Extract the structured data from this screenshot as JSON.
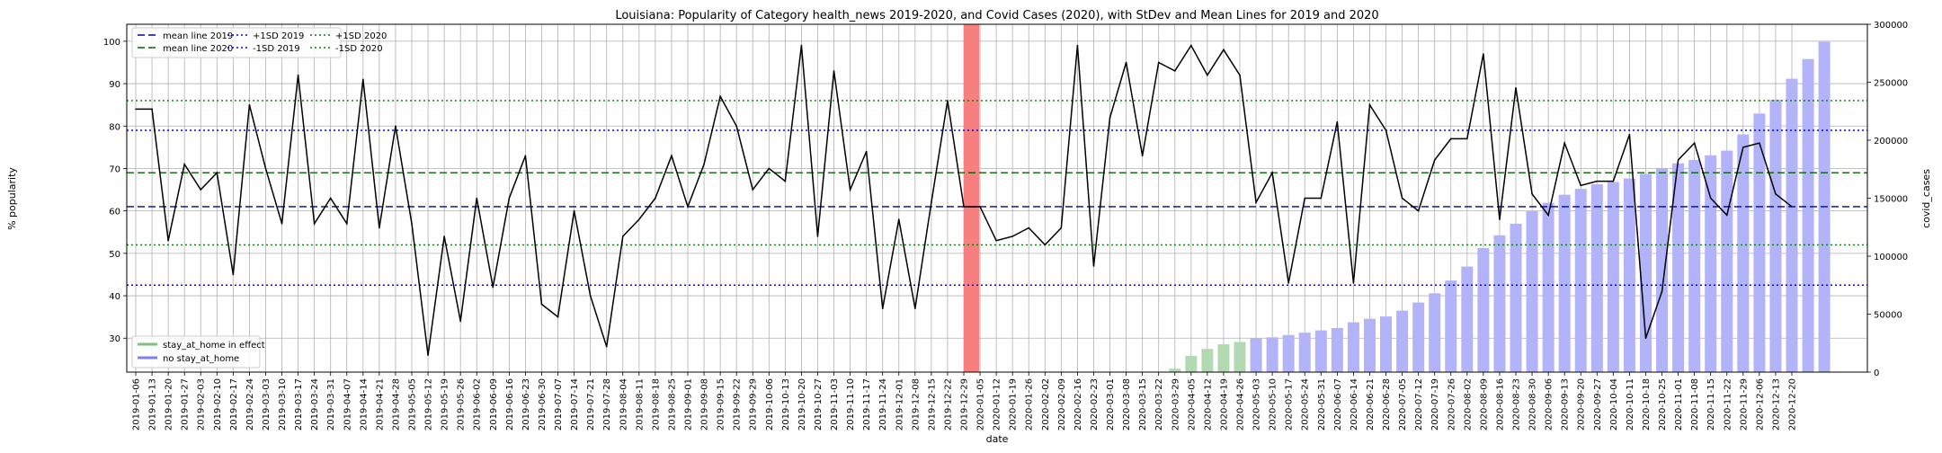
{
  "chart_data": {
    "type": "line",
    "title": "Louisiana: Popularity of Category health_news 2019-2020, and Covid Cases (2020), with StDev and Mean Lines for 2019 and 2020",
    "xlabel": "date",
    "ylabel": "% popularity",
    "y2label": "covid_cases",
    "ylim": [
      22,
      104
    ],
    "y2lim": [
      0,
      300000
    ],
    "yticks": [
      30,
      40,
      50,
      60,
      70,
      80,
      90,
      100
    ],
    "y2ticks": [
      0,
      50000,
      100000,
      150000,
      200000,
      250000,
      300000
    ],
    "grid": true,
    "dates": [
      "2019-01-06",
      "2019-01-13",
      "2019-01-20",
      "2019-01-27",
      "2019-02-03",
      "2019-02-10",
      "2019-02-17",
      "2019-02-24",
      "2019-03-03",
      "2019-03-10",
      "2019-03-17",
      "2019-03-24",
      "2019-03-31",
      "2019-04-07",
      "2019-04-14",
      "2019-04-21",
      "2019-04-28",
      "2019-05-05",
      "2019-05-12",
      "2019-05-19",
      "2019-05-26",
      "2019-06-02",
      "2019-06-09",
      "2019-06-16",
      "2019-06-23",
      "2019-06-30",
      "2019-07-07",
      "2019-07-14",
      "2019-07-21",
      "2019-07-28",
      "2019-08-04",
      "2019-08-11",
      "2019-08-18",
      "2019-08-25",
      "2019-09-01",
      "2019-09-08",
      "2019-09-15",
      "2019-09-22",
      "2019-09-29",
      "2019-10-06",
      "2019-10-13",
      "2019-10-20",
      "2019-10-27",
      "2019-11-03",
      "2019-11-10",
      "2019-11-17",
      "2019-11-24",
      "2019-12-01",
      "2019-12-08",
      "2019-12-15",
      "2019-12-22",
      "2019-12-29",
      "2020-01-05",
      "2020-01-12",
      "2020-01-19",
      "2020-01-26",
      "2020-02-02",
      "2020-02-09",
      "2020-02-16",
      "2020-02-23",
      "2020-03-01",
      "2020-03-08",
      "2020-03-15",
      "2020-03-22",
      "2020-03-29",
      "2020-04-05",
      "2020-04-12",
      "2020-04-19",
      "2020-04-26",
      "2020-05-03",
      "2020-05-10",
      "2020-05-17",
      "2020-05-24",
      "2020-05-31",
      "2020-06-07",
      "2020-06-14",
      "2020-06-21",
      "2020-06-28",
      "2020-07-05",
      "2020-07-12",
      "2020-07-19",
      "2020-07-26",
      "2020-08-02",
      "2020-08-09",
      "2020-08-16",
      "2020-08-23",
      "2020-08-30",
      "2020-09-06",
      "2020-09-13",
      "2020-09-20",
      "2020-09-27",
      "2020-10-04",
      "2020-10-11",
      "2020-10-18",
      "2020-10-25",
      "2020-11-01",
      "2020-11-08",
      "2020-11-15",
      "2020-11-22",
      "2020-11-29",
      "2020-12-06",
      "2020-12-13",
      "2020-12-20"
    ],
    "popularity": [
      84,
      84,
      53,
      71,
      65,
      69,
      45,
      85,
      70,
      57,
      92,
      57,
      63,
      57,
      91,
      56,
      80,
      57,
      26,
      54,
      34,
      63,
      42,
      63,
      73,
      38,
      35,
      60,
      40,
      28,
      54,
      58,
      63,
      73,
      61,
      71,
      87,
      80,
      65,
      70,
      67,
      99,
      54,
      93,
      65,
      74,
      37,
      58,
      37,
      62,
      86,
      61,
      61,
      53,
      54,
      56,
      52,
      56,
      99,
      47,
      82,
      95,
      73,
      95,
      93,
      99,
      92,
      98,
      92,
      62,
      69,
      43,
      63,
      63,
      81,
      43,
      85,
      79,
      63,
      60,
      72,
      77,
      77,
      97,
      58,
      89,
      64,
      59,
      76,
      66,
      67,
      67,
      78,
      30,
      41,
      72,
      76,
      63,
      59,
      75,
      76,
      64,
      61
    ],
    "covid_cases": [
      0,
      0,
      0,
      0,
      0,
      0,
      0,
      0,
      0,
      0,
      0,
      0,
      0,
      0,
      0,
      0,
      0,
      0,
      0,
      0,
      0,
      0,
      0,
      0,
      0,
      0,
      0,
      0,
      0,
      0,
      0,
      0,
      0,
      0,
      0,
      0,
      0,
      0,
      0,
      0,
      0,
      0,
      0,
      0,
      0,
      0,
      0,
      0,
      0,
      0,
      0,
      0,
      0,
      0,
      0,
      0,
      0,
      0,
      0,
      0,
      0,
      0,
      0,
      0,
      3000,
      14000,
      20000,
      24000,
      26000,
      29000,
      30000,
      32000,
      34000,
      36000,
      38000,
      43000,
      46000,
      48000,
      53000,
      60000,
      68000,
      79000,
      91000,
      107000,
      118000,
      128000,
      139000,
      146000,
      153000,
      158000,
      162000,
      164000,
      167000,
      171000,
      176000,
      180000,
      183000,
      187000,
      191000,
      205000,
      223000,
      235000,
      253000,
      270000,
      285000
    ],
    "stay_at_home": [
      0,
      0,
      0,
      0,
      0,
      0,
      0,
      0,
      0,
      0,
      0,
      0,
      0,
      0,
      0,
      0,
      0,
      0,
      0,
      0,
      0,
      0,
      0,
      0,
      0,
      0,
      0,
      0,
      0,
      0,
      0,
      0,
      0,
      0,
      0,
      0,
      0,
      0,
      0,
      0,
      0,
      0,
      0,
      0,
      0,
      0,
      0,
      0,
      0,
      0,
      0,
      0,
      0,
      0,
      0,
      0,
      0,
      0,
      0,
      0,
      0,
      0,
      0,
      0,
      1,
      1,
      1,
      1,
      1,
      0,
      0,
      0,
      0,
      0,
      0,
      0,
      0,
      0,
      0,
      0,
      0,
      0,
      0,
      0,
      0,
      0,
      0,
      0,
      0,
      0,
      0,
      0,
      0,
      0,
      0,
      0,
      0,
      0,
      0,
      0,
      0,
      0,
      0
    ],
    "year_boundary": "2020-01-05",
    "mean_2019": 61,
    "sd_plus_2019": 79,
    "sd_minus_2019": 42.5,
    "mean_2020": 69,
    "sd_plus_2020": 86,
    "sd_minus_2020": 52,
    "legend_lines": [
      {
        "label": "mean line 2019",
        "color": "#0000aa",
        "dash": "8,4"
      },
      {
        "label": "mean line 2020",
        "color": "#006400",
        "dash": "8,4"
      },
      {
        "label": "+1SD 2019",
        "color": "#0000ff",
        "dash": "2,3"
      },
      {
        "label": "-1SD 2019",
        "color": "#0000ff",
        "dash": "2,3"
      },
      {
        "label": "+1SD 2020",
        "color": "#008000",
        "dash": "2,3"
      },
      {
        "label": "-1SD 2020",
        "color": "#008000",
        "dash": "2,3"
      }
    ],
    "legend_bars": [
      {
        "label": "stay_at_home in effect",
        "color": "#7fbf7f"
      },
      {
        "label": "no stay_at_home",
        "color": "#7f7ff2"
      }
    ],
    "colors": {
      "popularity_line": "#000000",
      "bar_no_stay": "#b3b3fa",
      "bar_stay": "#b3d9b3",
      "boundary_band": "#f77f7f"
    }
  }
}
